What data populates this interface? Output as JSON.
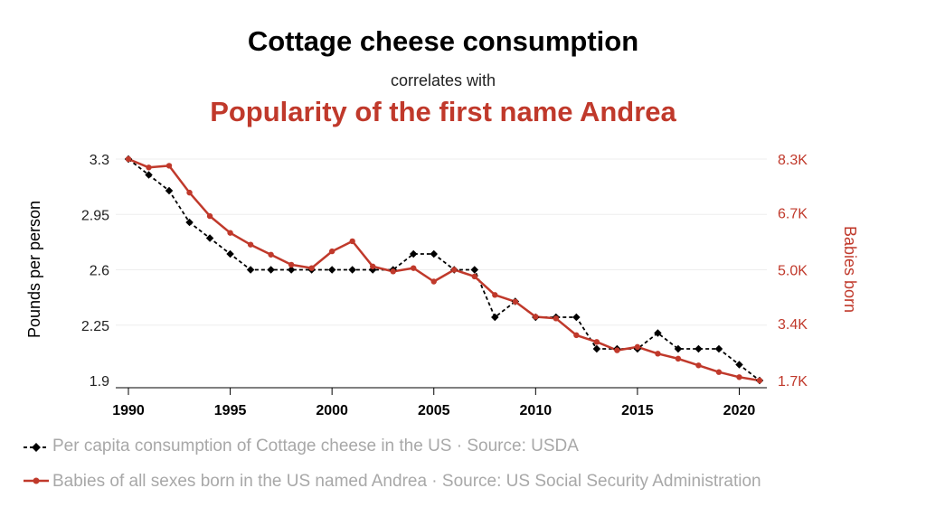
{
  "header": {
    "title": "Cottage cheese consumption",
    "subtitle": "correlates with",
    "title2": "Popularity of the first name Andrea"
  },
  "colors": {
    "series1": "#000000",
    "series2": "#c0392b",
    "grid": "#eeeeee"
  },
  "chart_data": {
    "type": "line",
    "title": "Cottage cheese consumption",
    "subtitle": "correlates with",
    "title2": "Popularity of the first name Andrea",
    "xlim": [
      1990,
      2021
    ],
    "x_ticks": [
      1990,
      1995,
      2000,
      2005,
      2010,
      2015,
      2020
    ],
    "ylabel_left": "Pounds per person",
    "ylabel_right": "Babies born",
    "ylim_left": [
      1.9,
      3.3
    ],
    "ylim_right": [
      1.7,
      8.3
    ],
    "y_ticks_left": [
      "3.3",
      "2.95",
      "2.6",
      "2.25",
      "1.9"
    ],
    "y_ticks_left_values": [
      3.3,
      2.95,
      2.6,
      2.25,
      1.9
    ],
    "y_ticks_right": [
      "8.3K",
      "6.7K",
      "5.0K",
      "3.4K",
      "1.7K"
    ],
    "y_ticks_right_values": [
      8.3,
      6.7,
      5.0,
      3.4,
      1.7
    ],
    "grid": true,
    "legend_position": "bottom-left",
    "series": [
      {
        "name": "Per capita consumption of Cottage cheese in the US · Source: USDA",
        "axis": "left",
        "style": "dashed-diamond",
        "x": [
          1990,
          1991,
          1992,
          1993,
          1994,
          1995,
          1996,
          1997,
          1998,
          1999,
          2000,
          2001,
          2002,
          2003,
          2004,
          2005,
          2006,
          2007,
          2008,
          2009,
          2010,
          2011,
          2012,
          2013,
          2014,
          2015,
          2016,
          2017,
          2018,
          2019,
          2020,
          2021
        ],
        "values": [
          3.3,
          3.2,
          3.1,
          2.9,
          2.8,
          2.7,
          2.6,
          2.6,
          2.6,
          2.6,
          2.6,
          2.6,
          2.6,
          2.6,
          2.7,
          2.7,
          2.6,
          2.6,
          2.3,
          2.4,
          2.3,
          2.3,
          2.3,
          2.1,
          2.1,
          2.1,
          2.2,
          2.1,
          2.1,
          2.1,
          2.0,
          1.9
        ]
      },
      {
        "name": "Babies of all sexes born in the US named Andrea · Source: US Social Security Administration",
        "axis": "right",
        "style": "solid-circle",
        "x": [
          1990,
          1991,
          1992,
          1993,
          1994,
          1995,
          1996,
          1997,
          1998,
          1999,
          2000,
          2001,
          2002,
          2003,
          2004,
          2005,
          2006,
          2007,
          2008,
          2009,
          2010,
          2011,
          2012,
          2013,
          2014,
          2015,
          2016,
          2017,
          2018,
          2019,
          2020,
          2021
        ],
        "values": [
          8.3,
          8.05,
          8.1,
          7.3,
          6.6,
          6.1,
          5.75,
          5.45,
          5.15,
          5.05,
          5.55,
          5.85,
          5.1,
          4.95,
          5.05,
          4.65,
          5.0,
          4.8,
          4.25,
          4.05,
          3.6,
          3.55,
          3.05,
          2.85,
          2.6,
          2.7,
          2.5,
          2.35,
          2.15,
          1.95,
          1.8,
          1.7
        ]
      }
    ]
  }
}
